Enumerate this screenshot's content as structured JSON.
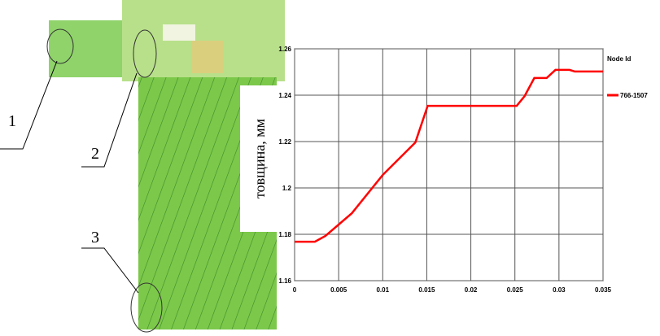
{
  "figure": {
    "callouts": [
      "1",
      "2",
      "3"
    ]
  },
  "chart_data": {
    "type": "line",
    "ylabel": "товщина, мм",
    "legend_title": "Node Id",
    "grid": true,
    "x": [
      0,
      0.0023,
      0.0035,
      0.0065,
      0.01,
      0.0137,
      0.0151,
      0.0252,
      0.0261,
      0.0272,
      0.0286,
      0.0296,
      0.0312,
      0.0318,
      0.035
    ],
    "series": [
      {
        "name": "766-1507",
        "color": "#ff0000",
        "values": [
          1.1768,
          1.1768,
          1.1793,
          1.1891,
          1.2056,
          1.2196,
          1.2354,
          1.2354,
          1.2396,
          1.2474,
          1.2474,
          1.2509,
          1.2509,
          1.2502,
          1.2502
        ]
      }
    ],
    "xlim": [
      0,
      0.035
    ],
    "xticks": [
      0,
      0.005,
      0.01,
      0.015,
      0.02,
      0.025,
      0.03,
      0.035
    ],
    "ylim": [
      1.16,
      1.26
    ],
    "yticks": [
      1.16,
      1.18,
      1.2,
      1.22,
      1.24,
      1.26
    ]
  }
}
